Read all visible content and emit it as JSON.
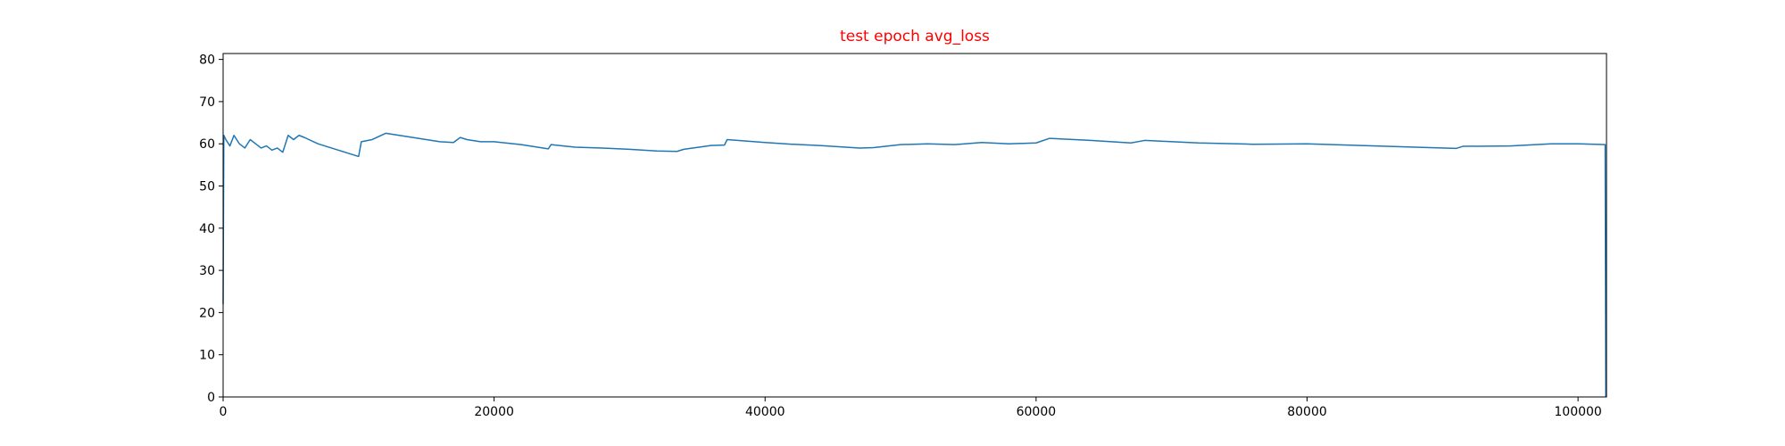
{
  "chart_data": {
    "type": "line",
    "title": "test epoch avg_loss",
    "title_color": "red",
    "x": [
      0,
      50,
      200,
      500,
      800,
      1200,
      1600,
      2000,
      2400,
      2800,
      3200,
      3600,
      4000,
      4400,
      4800,
      5200,
      5600,
      6000,
      7000,
      8000,
      9000,
      10000,
      10200,
      11000,
      12000,
      13000,
      14000,
      15000,
      16000,
      17000,
      17500,
      18000,
      19000,
      20000,
      22000,
      24000,
      24200,
      26000,
      28000,
      30000,
      32000,
      33500,
      34000,
      36000,
      37000,
      37200,
      40000,
      42000,
      44000,
      47000,
      48000,
      50000,
      52000,
      54000,
      56000,
      58000,
      60000,
      61000,
      64000,
      67000,
      68000,
      72000,
      76000,
      80000,
      84000,
      88000,
      91000,
      91500,
      95000,
      98000,
      100000,
      102000,
      102050
    ],
    "series": [
      {
        "color": "#1f77b4",
        "values": [
          22,
          62,
          61,
          59.5,
          62,
          60,
          59,
          61,
          60,
          59,
          59.5,
          58.5,
          59,
          58,
          62,
          61,
          62,
          61.5,
          60,
          59,
          58,
          57,
          60.5,
          61,
          62.5,
          62,
          61.5,
          61,
          60.5,
          60.3,
          61.5,
          61,
          60.5,
          60.5,
          59.8,
          58.8,
          59.8,
          59.2,
          59,
          58.7,
          58.3,
          58.2,
          58.7,
          59.6,
          59.7,
          61,
          60.3,
          59.9,
          59.6,
          59,
          59.1,
          59.8,
          60,
          59.8,
          60.3,
          60,
          60.2,
          61.3,
          60.8,
          60.2,
          60.8,
          60.2,
          59.9,
          60,
          59.6,
          59.2,
          58.9,
          59.4,
          59.5,
          60,
          60,
          59.8,
          0
        ]
      }
    ],
    "xlim": [
      0,
      102100
    ],
    "ylim": [
      0,
      81.4
    ],
    "xticks": [
      0,
      20000,
      40000,
      60000,
      80000,
      100000
    ],
    "yticks": [
      0,
      10,
      20,
      30,
      40,
      50,
      60,
      70,
      80
    ],
    "grid": false
  }
}
